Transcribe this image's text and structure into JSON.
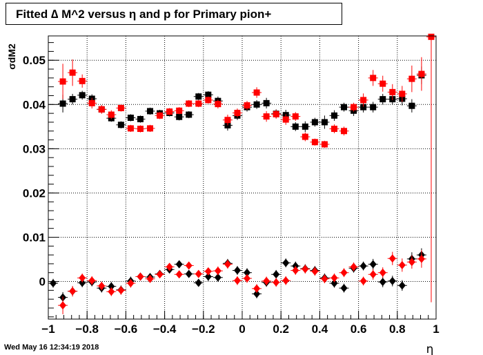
{
  "title": "Fitted ∆ M^2 versus η and p for Primary pion+",
  "timestamp": "Wed May 16 12:34:19 2018",
  "chart_data": {
    "type": "scatter",
    "title": "Fitted ∆ M^2 versus η and p for Primary pion+",
    "xlabel": "η",
    "ylabel": "σdM2",
    "xlim": [
      -1,
      1
    ],
    "ylim": [
      -0.0085,
      0.0555
    ],
    "grid": true,
    "x_ticks": [
      -1,
      -0.8,
      -0.6,
      -0.4,
      -0.2,
      0,
      0.2,
      0.4,
      0.6,
      0.8,
      1
    ],
    "x_tick_labels": [
      "−1",
      "−0.8",
      "−0.6",
      "−0.4",
      "−0.2",
      "0",
      "0.2",
      "0.4",
      "0.6",
      "0.8",
      "1"
    ],
    "y_ticks": [
      0,
      0.01,
      0.02,
      0.03,
      0.04,
      0.05
    ],
    "y_tick_labels": [
      "0",
      "0.01",
      "0.02",
      "0.03",
      "0.04",
      "0.05"
    ],
    "series": [
      {
        "color": "#000000",
        "marker": "square",
        "x": [
          -0.925,
          -0.875,
          -0.825,
          -0.775,
          -0.725,
          -0.675,
          -0.625,
          -0.575,
          -0.525,
          -0.475,
          -0.425,
          -0.375,
          -0.325,
          -0.275,
          -0.225,
          -0.175,
          -0.125,
          -0.075,
          -0.025,
          0.025,
          0.075,
          0.125,
          0.175,
          0.225,
          0.275,
          0.325,
          0.375,
          0.425,
          0.475,
          0.525,
          0.575,
          0.625,
          0.675,
          0.725,
          0.775,
          0.825,
          0.875,
          0.925
        ],
        "y": [
          0.0402,
          0.0412,
          0.0421,
          0.0413,
          0.0389,
          0.0369,
          0.0354,
          0.037,
          0.0367,
          0.0385,
          0.038,
          0.0381,
          0.0372,
          0.0377,
          0.0418,
          0.0422,
          0.0408,
          0.0353,
          0.0375,
          0.0394,
          0.04,
          0.0403,
          0.0379,
          0.0376,
          0.035,
          0.035,
          0.036,
          0.036,
          0.0375,
          0.0394,
          0.0386,
          0.0394,
          0.0394,
          0.0412,
          0.0412,
          0.0413,
          0.0397,
          0.0466
        ],
        "err": [
          0.002,
          0.0012,
          0.001,
          0.001,
          0.0008,
          0.0008,
          0.0008,
          0.0008,
          0.0008,
          0.0008,
          0.0008,
          0.0008,
          0.0008,
          0.0008,
          0.0008,
          0.0008,
          0.001,
          0.0012,
          0.001,
          0.001,
          0.001,
          0.0012,
          0.001,
          0.0012,
          0.001,
          0.0012,
          0.001,
          0.0015,
          0.0012,
          0.001,
          0.0012,
          0.0012,
          0.0012,
          0.0012,
          0.0012,
          0.0015,
          0.0015,
          0.002
        ]
      },
      {
        "color": "#ff0000",
        "marker": "square",
        "x": [
          -0.925,
          -0.875,
          -0.825,
          -0.775,
          -0.725,
          -0.675,
          -0.625,
          -0.575,
          -0.525,
          -0.475,
          -0.425,
          -0.375,
          -0.325,
          -0.275,
          -0.225,
          -0.175,
          -0.125,
          -0.075,
          -0.025,
          0.025,
          0.075,
          0.125,
          0.175,
          0.225,
          0.275,
          0.325,
          0.375,
          0.425,
          0.475,
          0.525,
          0.575,
          0.625,
          0.675,
          0.725,
          0.775,
          0.825,
          0.875,
          0.925,
          0.975
        ],
        "y": [
          0.0452,
          0.0472,
          0.0453,
          0.0403,
          0.0389,
          0.0377,
          0.0392,
          0.0346,
          0.0345,
          0.0346,
          0.0375,
          0.0384,
          0.0386,
          0.0402,
          0.0402,
          0.041,
          0.0401,
          0.0365,
          0.0381,
          0.0398,
          0.0427,
          0.0373,
          0.0378,
          0.0366,
          0.0373,
          0.0327,
          0.0315,
          0.031,
          0.0345,
          0.034,
          0.0394,
          0.041,
          0.046,
          0.0447,
          0.0428,
          0.0424,
          0.0458,
          0.0469,
          0.0553
        ],
        "err": [
          0.004,
          0.003,
          0.0015,
          0.0012,
          0.001,
          0.001,
          0.0008,
          0.0008,
          0.0008,
          0.0008,
          0.0008,
          0.0008,
          0.0008,
          0.0008,
          0.0008,
          0.0008,
          0.001,
          0.0012,
          0.001,
          0.001,
          0.0012,
          0.0012,
          0.001,
          0.0012,
          0.001,
          0.001,
          0.0008,
          0.0008,
          0.001,
          0.001,
          0.001,
          0.0015,
          0.0018,
          0.0018,
          0.0018,
          0.0018,
          0.003,
          0.0038,
          0.06
        ]
      },
      {
        "color": "#000000",
        "marker": "diamond",
        "x": [
          -0.975,
          -0.925,
          -0.875,
          -0.825,
          -0.775,
          -0.725,
          -0.675,
          -0.625,
          -0.575,
          -0.525,
          -0.475,
          -0.425,
          -0.375,
          -0.325,
          -0.275,
          -0.225,
          -0.175,
          -0.125,
          -0.075,
          -0.025,
          0.025,
          0.075,
          0.125,
          0.175,
          0.225,
          0.275,
          0.325,
          0.375,
          0.425,
          0.475,
          0.525,
          0.575,
          0.625,
          0.675,
          0.725,
          0.775,
          0.825,
          0.875,
          0.925
        ],
        "y": [
          -0.0004,
          -0.0036,
          -0.0022,
          -0.0003,
          -0.0001,
          -0.0015,
          -0.0011,
          -0.0019,
          0.0001,
          0.0011,
          0.001,
          0.0017,
          0.0027,
          0.0039,
          0.0017,
          -0.0003,
          0.0011,
          0.0009,
          0.0041,
          0.0025,
          0.002,
          -0.0028,
          -0.0002,
          0.0016,
          0.0042,
          0.0035,
          0.0029,
          0.0025,
          0.0008,
          -0.0004,
          -0.0015,
          0.003,
          0.0035,
          0.0039,
          -0.0001,
          0.0001,
          -0.0009,
          0.0051,
          0.006
        ],
        "err": [
          0.001,
          0.0012,
          0.001,
          0.001,
          0.001,
          0.001,
          0.001,
          0.001,
          0.001,
          0.0008,
          0.0008,
          0.0008,
          0.0008,
          0.0008,
          0.0008,
          0.0008,
          0.001,
          0.001,
          0.001,
          0.001,
          0.001,
          0.001,
          0.001,
          0.001,
          0.001,
          0.001,
          0.001,
          0.001,
          0.001,
          0.001,
          0.001,
          0.001,
          0.001,
          0.0012,
          0.0012,
          0.0012,
          0.0012,
          0.0015,
          0.0015
        ]
      },
      {
        "color": "#ff0000",
        "marker": "diamond",
        "x": [
          -0.925,
          -0.875,
          -0.825,
          -0.775,
          -0.725,
          -0.675,
          -0.625,
          -0.575,
          -0.525,
          -0.475,
          -0.425,
          -0.375,
          -0.325,
          -0.275,
          -0.225,
          -0.175,
          -0.125,
          -0.075,
          -0.025,
          0.025,
          0.075,
          0.125,
          0.175,
          0.225,
          0.275,
          0.325,
          0.375,
          0.425,
          0.475,
          0.525,
          0.575,
          0.625,
          0.675,
          0.725,
          0.775,
          0.825,
          0.875,
          0.925
        ],
        "y": [
          -0.0054,
          -0.0022,
          0.0008,
          0.0002,
          -0.001,
          -0.0023,
          -0.002,
          -0.0004,
          0.0011,
          0.0006,
          0.0016,
          0.0033,
          0.0016,
          0.0036,
          0.0017,
          0.0023,
          0.0024,
          0.0039,
          0.0002,
          0.0007,
          -0.0016,
          0.0001,
          -0.0002,
          0.0002,
          0.0025,
          0.0028,
          0.0023,
          0.0006,
          0.0008,
          0.002,
          0.0033,
          0.0001,
          0.0016,
          0.002,
          0.0052,
          0.0037,
          0.0044,
          0.0051
        ],
        "err": [
          0.002,
          0.0012,
          0.001,
          0.001,
          0.001,
          0.001,
          0.001,
          0.001,
          0.0008,
          0.0008,
          0.0008,
          0.0008,
          0.0008,
          0.0008,
          0.0008,
          0.0008,
          0.001,
          0.001,
          0.001,
          0.001,
          0.001,
          0.001,
          0.001,
          0.001,
          0.001,
          0.001,
          0.001,
          0.001,
          0.001,
          0.001,
          0.001,
          0.001,
          0.0012,
          0.0012,
          0.0015,
          0.0015,
          0.0015,
          0.002
        ]
      }
    ]
  }
}
